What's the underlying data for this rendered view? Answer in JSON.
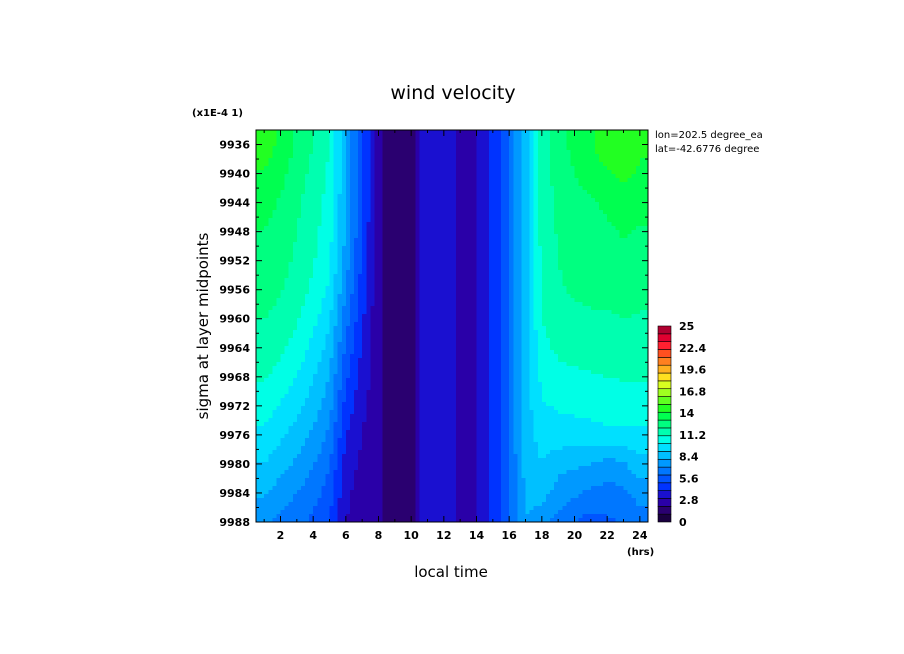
{
  "chart_data": {
    "type": "heatmap",
    "title": "wind velocity",
    "xlabel": "local time",
    "ylabel": "sigma at layer midpoints",
    "x_unit": "(hrs)",
    "y_multiplier": "(x1E-4 1)",
    "annotations": [
      "lon=202.5 degree_ea",
      "lat=-42.6776 degree"
    ],
    "xlim": [
      0.5,
      24.5
    ],
    "ylim": [
      9988,
      9934
    ],
    "x_ticks": [
      "2",
      "4",
      "6",
      "8",
      "10",
      "12",
      "14",
      "16",
      "18",
      "20",
      "22",
      "24"
    ],
    "y_ticks": [
      "9936",
      "9940",
      "9944",
      "9948",
      "9952",
      "9956",
      "9960",
      "9964",
      "9968",
      "9972",
      "9976",
      "9980",
      "9984",
      "9988"
    ],
    "colorbar": {
      "min": 0,
      "max": 25,
      "tick_labels": [
        "25",
        "22.4",
        "19.6",
        "16.8",
        "14",
        "11.2",
        "8.4",
        "5.6",
        "2.8",
        "0"
      ],
      "colors": [
        "#1a0040",
        "#2a0070",
        "#2a00a8",
        "#1a10d0",
        "#0033ff",
        "#0055ff",
        "#0077ff",
        "#0099ff",
        "#00c0ff",
        "#00e0ff",
        "#00ffe6",
        "#00ffb0",
        "#00ff80",
        "#00ff50",
        "#22ff22",
        "#60ff20",
        "#a0ff20",
        "#d8ff20",
        "#ffe020",
        "#ffb020",
        "#ff8020",
        "#ff5020",
        "#ff2030",
        "#e00030",
        "#b00030"
      ]
    },
    "x": [
      1,
      2,
      3,
      4,
      5,
      6,
      7,
      8,
      9,
      10,
      11,
      12,
      13,
      14,
      15,
      16,
      17,
      18,
      19,
      20,
      21,
      22,
      23,
      24
    ],
    "y": [
      9936,
      9940,
      9944,
      9948,
      9952,
      9956,
      9960,
      9964,
      9968,
      9972,
      9976,
      9980,
      9984,
      9988
    ],
    "z": [
      [
        14.5,
        13.8,
        12.8,
        12.0,
        11.0,
        8.0,
        5.2,
        2.2,
        1.0,
        1.6,
        4.0,
        3.5,
        2.8,
        3.0,
        4.2,
        6.2,
        8.5,
        11.5,
        12.6,
        13.3,
        13.9,
        14.6,
        14.9,
        14.2
      ],
      [
        13.9,
        13.3,
        12.5,
        11.7,
        10.8,
        8.0,
        5.2,
        2.2,
        1.0,
        1.6,
        4.0,
        3.5,
        2.8,
        3.0,
        4.2,
        6.2,
        8.5,
        11.5,
        12.4,
        13.0,
        13.4,
        13.9,
        14.3,
        13.8
      ],
      [
        13.4,
        12.9,
        12.2,
        11.5,
        10.6,
        8.0,
        5.2,
        2.2,
        1.0,
        1.6,
        4.0,
        3.5,
        2.8,
        3.0,
        4.2,
        6.2,
        8.5,
        11.4,
        12.2,
        12.7,
        12.9,
        13.2,
        13.6,
        13.3
      ],
      [
        13.0,
        12.6,
        12.0,
        11.3,
        10.4,
        7.8,
        5.0,
        2.2,
        1.0,
        1.6,
        4.0,
        3.5,
        2.8,
        3.0,
        4.2,
        6.2,
        8.5,
        11.4,
        12.1,
        12.5,
        12.6,
        12.8,
        13.1,
        12.9
      ],
      [
        12.7,
        12.4,
        11.8,
        11.1,
        10.2,
        7.5,
        4.8,
        2.2,
        1.0,
        1.6,
        4.0,
        3.5,
        2.8,
        3.0,
        4.2,
        6.2,
        8.5,
        11.3,
        12.0,
        12.3,
        12.4,
        12.5,
        12.7,
        12.6
      ],
      [
        12.4,
        12.1,
        11.5,
        10.8,
        9.8,
        7.0,
        4.5,
        2.2,
        1.0,
        1.6,
        4.0,
        3.5,
        2.8,
        3.0,
        4.2,
        6.2,
        8.5,
        11.2,
        11.9,
        12.1,
        12.2,
        12.2,
        12.4,
        12.3
      ],
      [
        12.0,
        11.7,
        11.1,
        10.3,
        9.2,
        6.4,
        4.2,
        2.2,
        1.0,
        1.6,
        4.0,
        3.5,
        2.8,
        3.0,
        4.2,
        6.2,
        8.5,
        11.0,
        11.6,
        11.8,
        11.9,
        11.9,
        12.0,
        11.9
      ],
      [
        11.6,
        11.2,
        10.6,
        9.7,
        8.6,
        5.8,
        3.9,
        2.2,
        1.0,
        1.6,
        4.0,
        3.5,
        2.8,
        3.0,
        4.2,
        6.2,
        8.5,
        10.7,
        11.2,
        11.4,
        11.5,
        11.5,
        11.6,
        11.6
      ],
      [
        11.1,
        10.6,
        10.0,
        9.1,
        8.0,
        5.2,
        3.6,
        2.2,
        1.0,
        1.6,
        4.0,
        3.5,
        2.8,
        3.0,
        4.2,
        6.2,
        8.5,
        10.3,
        10.7,
        10.8,
        10.9,
        11.0,
        11.1,
        11.1
      ],
      [
        10.5,
        9.9,
        9.3,
        8.5,
        7.4,
        4.6,
        3.3,
        2.2,
        1.0,
        1.6,
        4.0,
        3.5,
        2.8,
        3.0,
        4.2,
        6.2,
        8.5,
        9.9,
        10.1,
        10.2,
        10.3,
        10.4,
        10.5,
        10.5
      ],
      [
        9.8,
        9.2,
        8.6,
        7.8,
        6.8,
        4.0,
        3.0,
        2.2,
        1.0,
        1.6,
        4.0,
        3.5,
        2.8,
        3.0,
        4.2,
        6.2,
        8.4,
        9.5,
        9.6,
        9.6,
        9.7,
        9.8,
        9.8,
        9.8
      ],
      [
        9.0,
        8.4,
        7.8,
        7.1,
        6.1,
        3.5,
        2.8,
        2.2,
        1.0,
        1.6,
        4.0,
        3.5,
        2.8,
        3.0,
        4.2,
        6.2,
        8.3,
        9.0,
        8.3,
        8.2,
        8.0,
        7.6,
        7.9,
        8.6
      ],
      [
        8.1,
        7.5,
        7.0,
        6.4,
        5.5,
        3.2,
        2.6,
        2.2,
        1.0,
        1.6,
        4.0,
        3.5,
        2.8,
        3.0,
        4.2,
        6.2,
        8.2,
        8.4,
        7.6,
        7.2,
        6.8,
        6.6,
        6.8,
        7.4
      ],
      [
        7.2,
        6.7,
        6.3,
        5.8,
        5.0,
        3.0,
        2.5,
        2.2,
        1.0,
        1.6,
        4.0,
        3.5,
        2.8,
        3.0,
        4.2,
        6.2,
        8.0,
        7.4,
        6.6,
        6.0,
        5.6,
        5.8,
        6.2,
        6.6
      ]
    ]
  }
}
